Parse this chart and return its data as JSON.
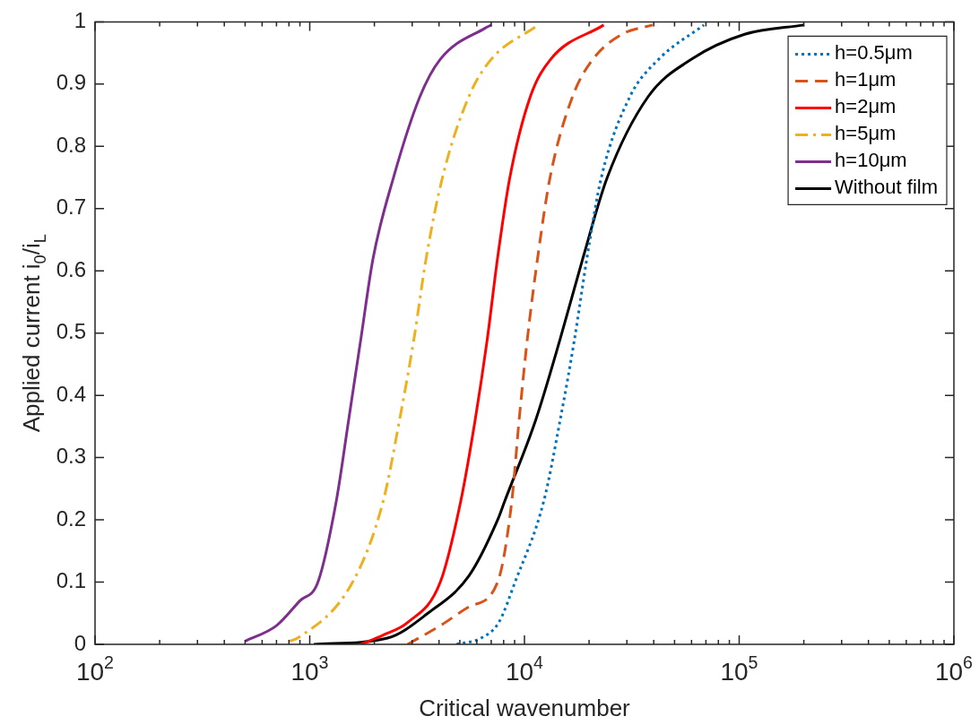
{
  "chart_data": {
    "type": "line",
    "xlabel": "Critical wavenumber",
    "ylabel": "Applied current i$_{0}$/i$_{L}$",
    "log": "x",
    "grid": false,
    "legend": "top right",
    "marker": "none",
    "xlim": [
      100,
      1000000
    ],
    "ylim": [
      0,
      1
    ],
    "xticks": [
      {
        "value": 100,
        "label": "10$^{2}$"
      },
      {
        "value": 200,
        "label": null
      },
      {
        "value": 300,
        "label": null
      },
      {
        "value": 400,
        "label": null
      },
      {
        "value": 500,
        "label": null
      },
      {
        "value": 600,
        "label": null
      },
      {
        "value": 700,
        "label": null
      },
      {
        "value": 800,
        "label": null
      },
      {
        "value": 900,
        "label": null
      },
      {
        "value": 1000,
        "label": "10$^{3}$"
      },
      {
        "value": 2000,
        "label": null
      },
      {
        "value": 3000,
        "label": null
      },
      {
        "value": 4000,
        "label": null
      },
      {
        "value": 5000,
        "label": null
      },
      {
        "value": 6000,
        "label": null
      },
      {
        "value": 7000,
        "label": null
      },
      {
        "value": 8000,
        "label": null
      },
      {
        "value": 9000,
        "label": null
      },
      {
        "value": 10000,
        "label": "10$^{4}$"
      },
      {
        "value": 20000,
        "label": null
      },
      {
        "value": 30000,
        "label": null
      },
      {
        "value": 40000,
        "label": null
      },
      {
        "value": 50000,
        "label": null
      },
      {
        "value": 60000,
        "label": null
      },
      {
        "value": 70000,
        "label": null
      },
      {
        "value": 80000,
        "label": null
      },
      {
        "value": 90000,
        "label": null
      },
      {
        "value": 100000,
        "label": "10$^{5}$"
      },
      {
        "value": 200000,
        "label": null
      },
      {
        "value": 300000,
        "label": null
      },
      {
        "value": 400000,
        "label": null
      },
      {
        "value": 500000,
        "label": null
      },
      {
        "value": 600000,
        "label": null
      },
      {
        "value": 700000,
        "label": null
      },
      {
        "value": 800000,
        "label": null
      },
      {
        "value": 900000,
        "label": null
      },
      {
        "value": 1000000,
        "label": "10$^{6}$"
      }
    ],
    "yticks": [
      0,
      0.1,
      0.2,
      0.3,
      0.4,
      0.5,
      0.6,
      0.7,
      0.8,
      0.9,
      1
    ],
    "series": [
      {
        "name": "h=0.5μm",
        "color": "#0072bd",
        "line_style": "dotted",
        "x": [
          4830,
          6280,
          7590,
          9040,
          12300,
          14660,
          17100,
          19530,
          22800,
          31000,
          42200,
          68500
        ],
        "values": [
          0,
          0.01,
          0.035,
          0.1,
          0.23,
          0.36,
          0.49,
          0.62,
          0.75,
          0.88,
          0.94,
          0.995
        ]
      },
      {
        "name": "h=1μm",
        "color": "#d95319",
        "line_style": "dashed",
        "x": [
          2855,
          4055,
          5500,
          7500,
          8730,
          9440,
          10310,
          11510,
          13160,
          16750,
          20850,
          28400,
          39500
        ],
        "values": [
          0,
          0.03,
          0.06,
          0.1,
          0.23,
          0.36,
          0.49,
          0.62,
          0.75,
          0.88,
          0.94,
          0.98,
          0.995
        ]
      },
      {
        "name": "h=2μm",
        "color": "#ff0000",
        "line_style": "solid",
        "x": [
          1730,
          2200,
          2855,
          4055,
          5050,
          5890,
          6710,
          7490,
          8550,
          10650,
          13250,
          23400
        ],
        "values": [
          0,
          0.015,
          0.035,
          0.1,
          0.23,
          0.36,
          0.49,
          0.62,
          0.75,
          0.88,
          0.94,
          0.995
        ]
      },
      {
        "name": "h=5μm",
        "color": "#edb120",
        "line_style": "dashdot",
        "x": [
          800,
          877,
          1584,
          2198,
          2618,
          3055,
          3484,
          4150,
          5510,
          7010,
          11350
        ],
        "values": [
          0.005,
          0.01,
          0.1,
          0.23,
          0.36,
          0.49,
          0.62,
          0.75,
          0.88,
          0.94,
          0.993
        ]
      },
      {
        "name": "h=10μm",
        "color": "#7e2f8e",
        "line_style": "solid",
        "x": [
          500,
          700,
          900,
          1092,
          1329,
          1517,
          1729,
          1972,
          2455,
          3260,
          4055,
          6560,
          7010
        ],
        "values": [
          0.005,
          0.03,
          0.07,
          0.1,
          0.23,
          0.36,
          0.49,
          0.62,
          0.75,
          0.88,
          0.94,
          0.99,
          0.995
        ]
      },
      {
        "name": "Without film",
        "color": "#000000",
        "line_style": "solid",
        "x": [
          1045,
          2300,
          3550,
          5510,
          7500,
          8090,
          11270,
          14650,
          18700,
          24300,
          37700,
          60000,
          106000,
          201000
        ],
        "values": [
          0,
          0.01,
          0.05,
          0.11,
          0.2,
          0.23,
          0.36,
          0.49,
          0.62,
          0.75,
          0.88,
          0.94,
          0.98,
          0.995
        ]
      }
    ]
  }
}
